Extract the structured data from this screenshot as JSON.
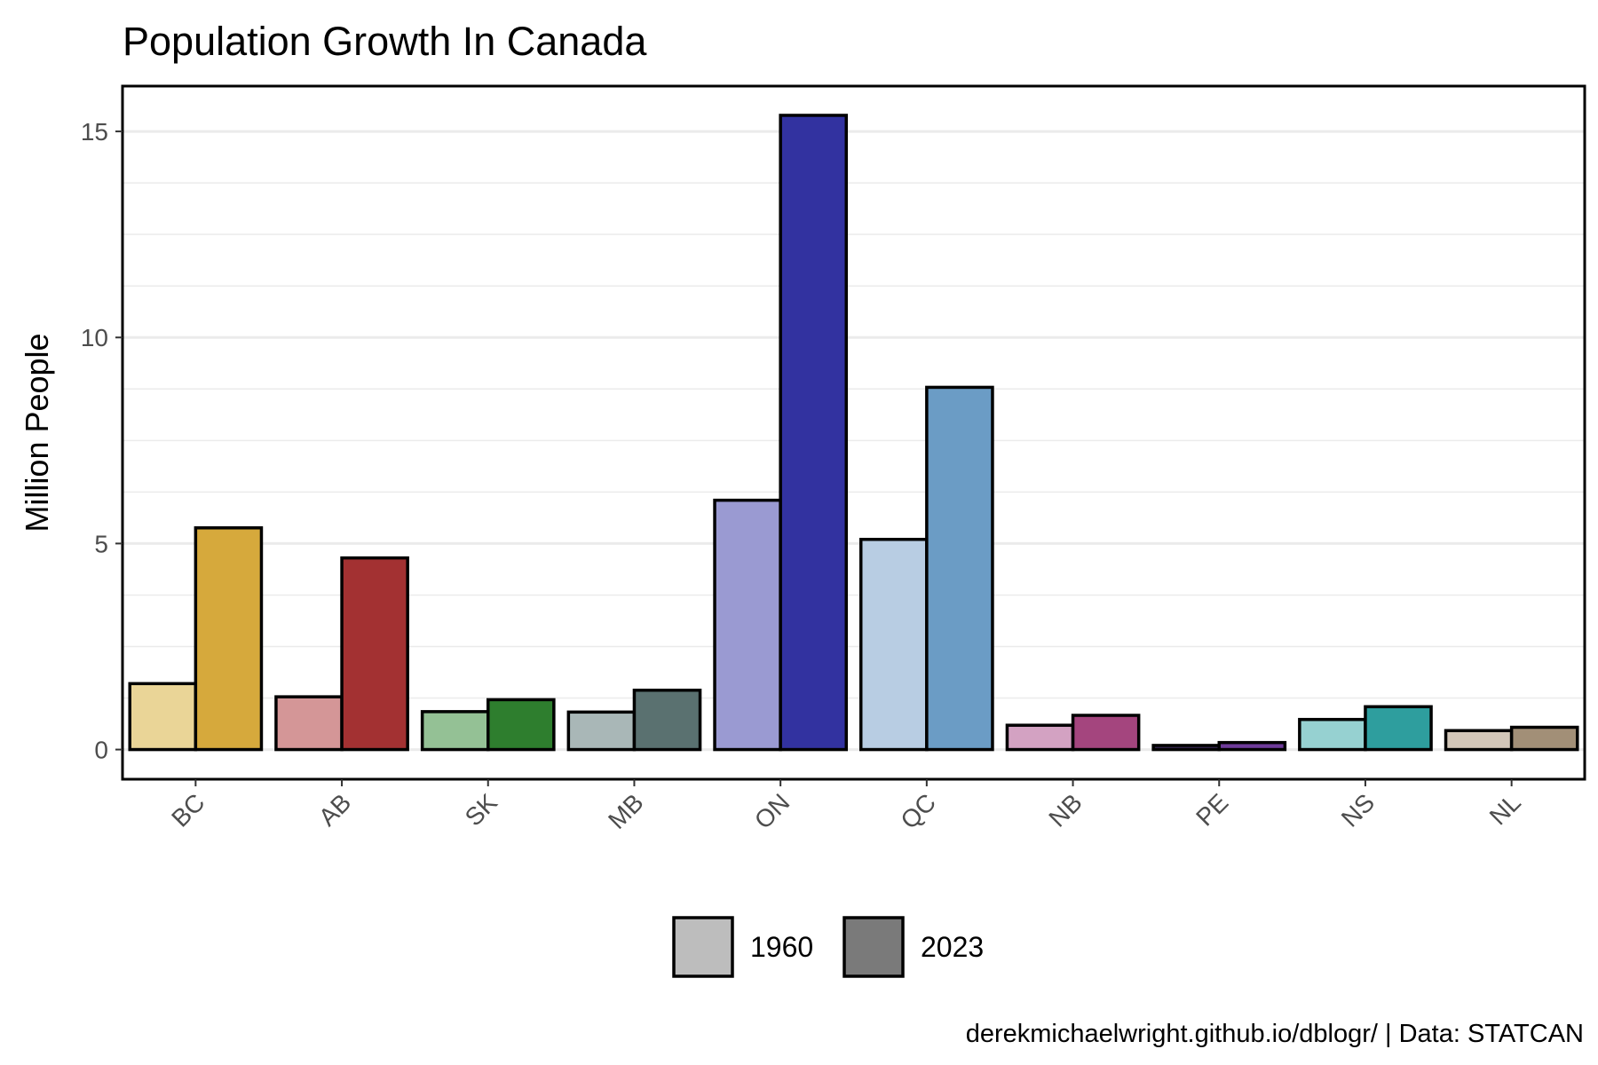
{
  "chart_data": {
    "type": "bar",
    "title": "Population Growth In Canada",
    "subtitle": "",
    "xlabel": "",
    "ylabel": "Million People",
    "caption": "derekmichaelwright.github.io/dblogr/ | Data: STATCAN",
    "categories": [
      "BC",
      "AB",
      "SK",
      "MB",
      "ON",
      "QC",
      "NB",
      "PE",
      "NS",
      "NL"
    ],
    "series": [
      {
        "name": "1960",
        "values": [
          1.6,
          1.28,
          0.92,
          0.91,
          6.05,
          5.1,
          0.59,
          0.1,
          0.73,
          0.46
        ]
      },
      {
        "name": "2023",
        "values": [
          5.38,
          4.65,
          1.21,
          1.44,
          15.39,
          8.79,
          0.83,
          0.17,
          1.04,
          0.54
        ]
      }
    ],
    "ylim": [
      -0.72,
      16.1
    ],
    "yticks": [
      0,
      5,
      10,
      15
    ],
    "grid": true,
    "legend_position": "bottom",
    "colors": {
      "1960": [
        "#ead597",
        "#d49697",
        "#94c195",
        "#a9b7b7",
        "#9a9ad2",
        "#b8cde3",
        "#d3a2c2",
        "#3a2a55",
        "#96d1d1",
        "#d2c6b8"
      ],
      "2023": [
        "#d6a93c",
        "#a33132",
        "#2e7e2e",
        "#5a7170",
        "#3232a0",
        "#6b9cc5",
        "#a4457e",
        "#6e3a99",
        "#2e9e9e",
        "#a28f77"
      ],
      "legend": {
        "1960": "#bdbdbd",
        "2023": "#7a7a7a"
      }
    }
  }
}
